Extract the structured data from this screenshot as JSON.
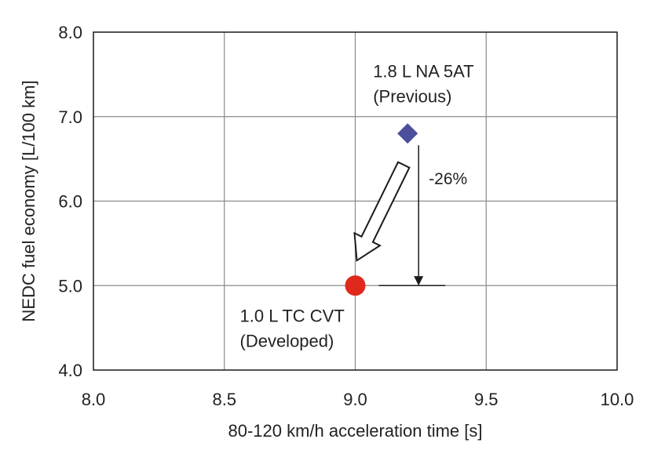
{
  "chart_data": {
    "type": "scatter",
    "title": "",
    "xlabel": "80-120 km/h acceleration time [s]",
    "ylabel": "NEDC fuel economy  [L/100 km]",
    "xlim": [
      8.0,
      10.0
    ],
    "ylim": [
      4.0,
      8.0
    ],
    "xticks": [
      "8.0",
      "8.5",
      "9.0",
      "9.5",
      "10.0"
    ],
    "yticks": [
      "4.0",
      "5.0",
      "6.0",
      "7.0",
      "8.0"
    ],
    "grid": true,
    "series": [
      {
        "name": "1.8 L NA 5AT (Previous)",
        "marker": "diamond",
        "color": "#4b4f9c",
        "x": 9.2,
        "y": 6.8,
        "label_line1": "1.8 L NA 5AT",
        "label_line2": "(Previous)"
      },
      {
        "name": "1.0 L TC CVT (Developed)",
        "marker": "circle",
        "color": "#e0291d",
        "x": 9.0,
        "y": 5.0,
        "label_line1": "1.0 L TC CVT",
        "label_line2": "(Developed)"
      }
    ],
    "annotations": {
      "reduction_label": "-26%",
      "reduction_from": 6.8,
      "reduction_to": 5.0
    }
  }
}
